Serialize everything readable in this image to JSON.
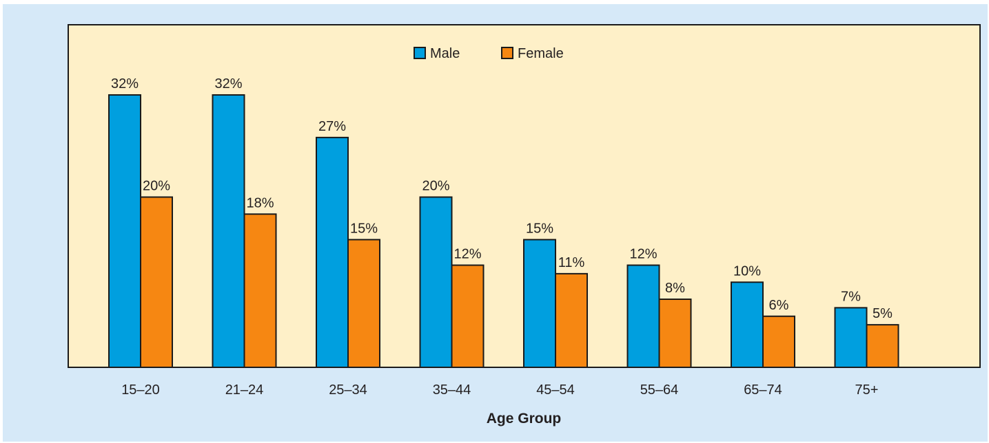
{
  "chart_data": {
    "type": "bar",
    "categories": [
      "15–20",
      "21–24",
      "25–34",
      "35–44",
      "45–54",
      "55–64",
      "65–74",
      "75+"
    ],
    "series": [
      {
        "name": "Male",
        "color": "#009fdf",
        "values": [
          32,
          32,
          27,
          20,
          15,
          12,
          10,
          7
        ]
      },
      {
        "name": "Female",
        "color": "#f68712",
        "values": [
          20,
          18,
          15,
          12,
          11,
          8,
          6,
          5
        ]
      }
    ],
    "value_labels": {
      "Male": [
        "32%",
        "32%",
        "27%",
        "20%",
        "15%",
        "12%",
        "10%",
        "7%"
      ],
      "Female": [
        "20%",
        "18%",
        "15%",
        "12%",
        "11%",
        "8%",
        "6%",
        "5%"
      ]
    },
    "title": "",
    "xlabel": "Age Group",
    "ylabel": "",
    "ylim": [
      0,
      32
    ],
    "grid": false,
    "legend": "top-center",
    "plot_background": "#fef0c8",
    "page_background": "#d6e9f8"
  }
}
